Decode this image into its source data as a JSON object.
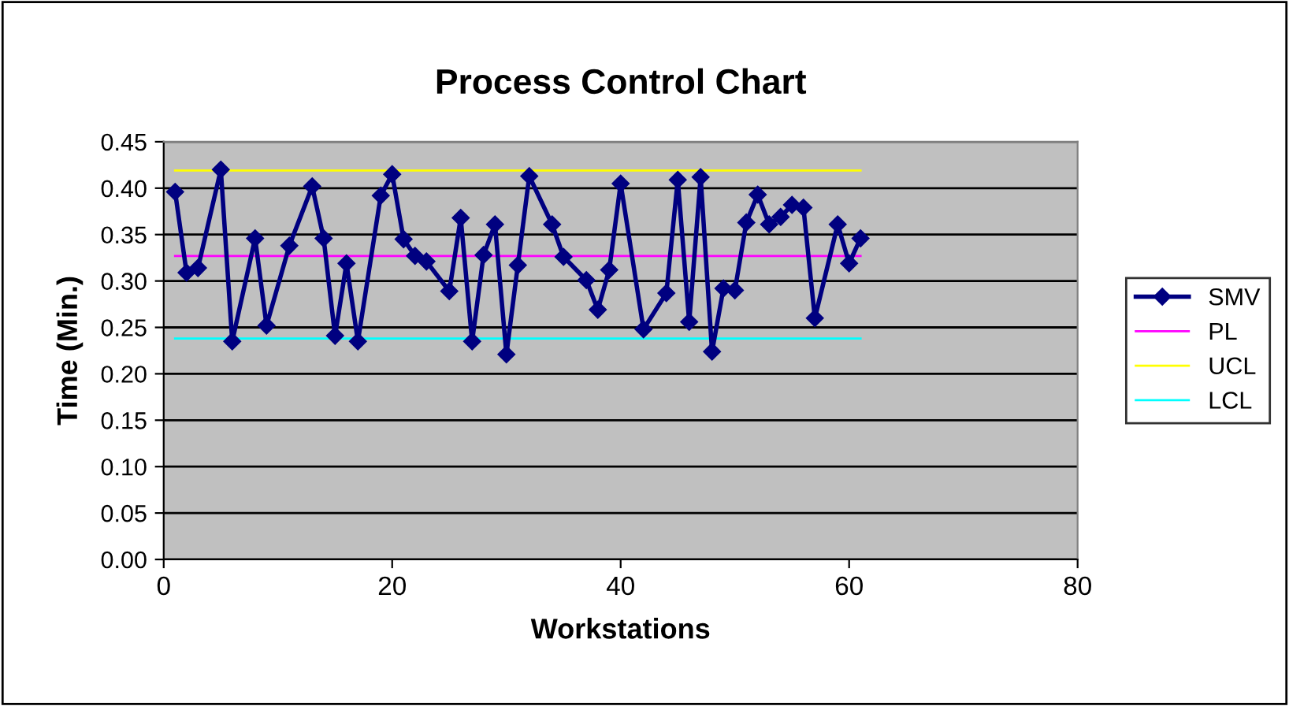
{
  "chart_data": {
    "type": "line",
    "title": "Process Control Chart",
    "xlabel": "Workstations",
    "ylabel": "Time (Min.)",
    "xlim": [
      0,
      80
    ],
    "xticks": [
      0,
      20,
      40,
      60,
      80
    ],
    "ylim": [
      0,
      0.45
    ],
    "yticks": [
      {
        "value": 0,
        "label": "0.00"
      },
      {
        "value": 0.05,
        "label": "0.05"
      },
      {
        "value": 0.1,
        "label": "0.10"
      },
      {
        "value": 0.15,
        "label": "0.15"
      },
      {
        "value": 0.2,
        "label": "0.20"
      },
      {
        "value": 0.25,
        "label": "0.25"
      },
      {
        "value": 0.3,
        "label": "0.30"
      },
      {
        "value": 0.35,
        "label": "0.35"
      },
      {
        "value": 0.4,
        "label": "0.40"
      },
      {
        "value": 0.45,
        "label": "0.45"
      }
    ],
    "grid": "y",
    "legend": "right",
    "series": [
      {
        "name": "SMV",
        "color": "#000080",
        "marker": "diamond",
        "x": [
          1,
          2,
          3,
          5,
          6,
          8,
          9,
          11,
          13,
          14,
          15,
          16,
          17,
          19,
          20,
          21,
          22,
          23,
          25,
          26,
          27,
          28,
          29,
          30,
          31,
          32,
          34,
          35,
          37,
          38,
          39,
          40,
          42,
          44,
          45,
          46,
          47,
          48,
          49,
          50,
          51,
          52,
          53,
          54,
          55,
          56,
          57,
          59,
          60,
          61
        ],
        "values": [
          0.396,
          0.309,
          0.314,
          0.42,
          0.235,
          0.346,
          0.252,
          0.338,
          0.402,
          0.346,
          0.241,
          0.319,
          0.235,
          0.392,
          0.415,
          0.345,
          0.327,
          0.321,
          0.289,
          0.368,
          0.235,
          0.328,
          0.361,
          0.221,
          0.317,
          0.413,
          0.361,
          0.326,
          0.301,
          0.269,
          0.312,
          0.405,
          0.248,
          0.287,
          0.409,
          0.256,
          0.412,
          0.224,
          0.292,
          0.29,
          0.363,
          0.393,
          0.361,
          0.369,
          0.382,
          0.379,
          0.26,
          0.361,
          0.319,
          0.346
        ]
      },
      {
        "name": "PL",
        "color": "#ff00ff",
        "marker": "none",
        "x": [
          1,
          61
        ],
        "values": [
          0.327,
          0.327
        ]
      },
      {
        "name": "UCL",
        "color": "#ffff00",
        "marker": "none",
        "x": [
          1,
          61
        ],
        "values": [
          0.419,
          0.419
        ]
      },
      {
        "name": "LCL",
        "color": "#00ffff",
        "marker": "none",
        "x": [
          1,
          61
        ],
        "values": [
          0.238,
          0.238
        ]
      }
    ]
  }
}
